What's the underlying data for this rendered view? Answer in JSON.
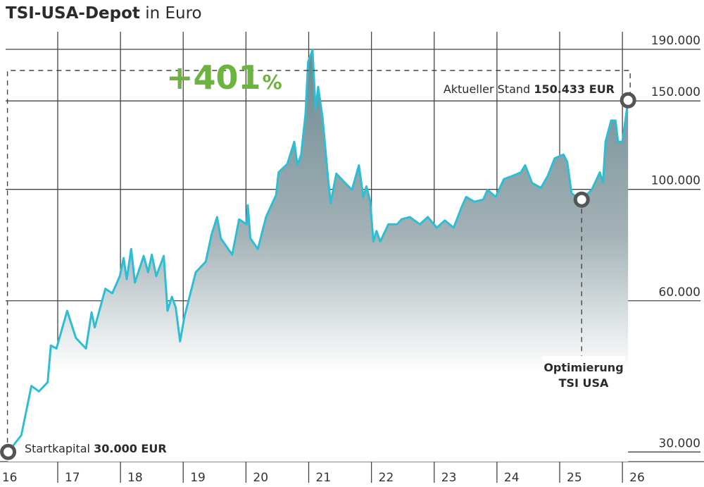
{
  "chart_data": {
    "type": "area",
    "title": "TSI-USA-Depot",
    "title_suffix": "in Euro",
    "gain": {
      "number": "+401",
      "unit": "%"
    },
    "annotations": {
      "end": {
        "label": "Aktueller Stand",
        "value_text": "150.433 EUR"
      },
      "start": {
        "label": "Startkapital",
        "value_text": "30.000 EUR"
      },
      "optimization": {
        "line1": "Optimierung",
        "line2": "TSI USA"
      }
    },
    "color": "#2fbdd3",
    "log_scale": true,
    "grid": true,
    "xlim": [
      2016.08,
      2027.3
    ],
    "xticks": [
      {
        "value": 2016,
        "label": "16"
      },
      {
        "value": 2017,
        "label": "17"
      },
      {
        "value": 2018,
        "label": "18"
      },
      {
        "value": 2019,
        "label": "19"
      },
      {
        "value": 2020,
        "label": "20"
      },
      {
        "value": 2021,
        "label": "21"
      },
      {
        "value": 2022,
        "label": "22"
      },
      {
        "value": 2023,
        "label": "23"
      },
      {
        "value": 2024,
        "label": "24"
      },
      {
        "value": 2025,
        "label": "25"
      },
      {
        "value": 2026,
        "label": "26"
      }
    ],
    "ylim": [
      28700,
      206000
    ],
    "yticks": [
      {
        "value": 30000,
        "label": "30.000"
      },
      {
        "value": 60000,
        "label": "60.000"
      },
      {
        "value": 100000,
        "label": "100.000"
      },
      {
        "value": 150000,
        "label": "150.000"
      },
      {
        "value": 190000,
        "label": "190.000"
      }
    ],
    "x": [
      2016.21,
      2016.42,
      2016.58,
      2016.7,
      2016.84,
      2016.89,
      2016.98,
      2017.15,
      2017.29,
      2017.45,
      2017.54,
      2017.59,
      2017.76,
      2017.87,
      2017.99,
      2018.05,
      2018.1,
      2018.17,
      2018.23,
      2018.37,
      2018.44,
      2018.5,
      2018.57,
      2018.69,
      2018.75,
      2018.82,
      2018.88,
      2018.95,
      2019.02,
      2019.2,
      2019.36,
      2019.45,
      2019.54,
      2019.6,
      2019.78,
      2019.89,
      2020.01,
      2020.03,
      2020.07,
      2020.19,
      2020.32,
      2020.48,
      2020.52,
      2020.66,
      2020.77,
      2020.82,
      2020.88,
      2020.95,
      2020.99,
      2021.06,
      2021.11,
      2021.15,
      2021.22,
      2021.31,
      2021.35,
      2021.44,
      2021.58,
      2021.69,
      2021.8,
      2021.87,
      2021.92,
      2021.98,
      2022.03,
      2022.08,
      2022.14,
      2022.27,
      2022.41,
      2022.48,
      2022.61,
      2022.77,
      2022.9,
      2023.04,
      2023.17,
      2023.31,
      2023.44,
      2023.51,
      2023.64,
      2023.78,
      2023.85,
      2023.98,
      2024.11,
      2024.25,
      2024.38,
      2024.45,
      2024.56,
      2024.7,
      2024.81,
      2024.92,
      2025.06,
      2025.12,
      2025.19,
      2025.35,
      2025.51,
      2025.64,
      2025.69,
      2025.73,
      2025.82,
      2025.89,
      2025.93,
      2026.0,
      2026.09
    ],
    "values": [
      30000,
      32400,
      40600,
      39600,
      41300,
      48900,
      48200,
      57300,
      50600,
      48200,
      56900,
      53100,
      63400,
      62100,
      67200,
      73000,
      66200,
      76100,
      65200,
      73700,
      68400,
      74100,
      67200,
      73700,
      57300,
      61100,
      58200,
      49800,
      55800,
      68400,
      71800,
      81200,
      88100,
      79900,
      74100,
      87200,
      85200,
      93000,
      79900,
      76100,
      88100,
      97500,
      108100,
      112400,
      124400,
      111700,
      117300,
      141500,
      179300,
      189400,
      143900,
      160000,
      139300,
      104800,
      93900,
      107500,
      103000,
      99800,
      111700,
      96600,
      101400,
      94800,
      78700,
      82600,
      78700,
      85200,
      85200,
      87200,
      88100,
      85200,
      88100,
      83900,
      86700,
      83900,
      92400,
      96600,
      94500,
      95400,
      99800,
      96600,
      104800,
      106400,
      108100,
      111700,
      103000,
      100700,
      106400,
      115300,
      117300,
      113500,
      98100,
      95400,
      99800,
      108100,
      103000,
      124400,
      137100,
      137100,
      124400,
      124400,
      150433
    ]
  }
}
